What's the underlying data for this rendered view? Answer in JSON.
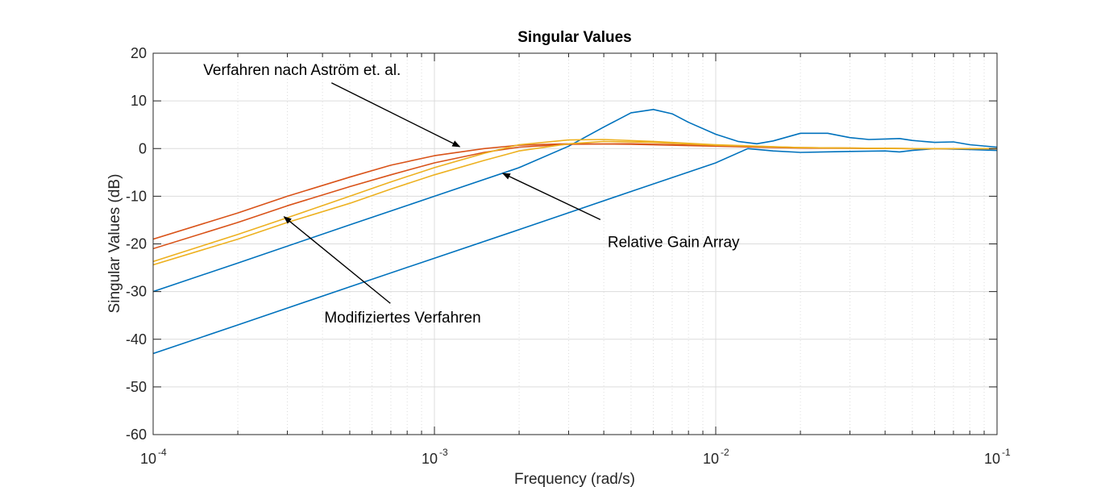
{
  "chart_data": {
    "type": "line",
    "title": "Singular Values",
    "xlabel": "Frequency (rad/s)",
    "ylabel": "Singular Values (dB)",
    "xscale": "log",
    "xlim": [
      0.0001,
      0.1
    ],
    "ylim": [
      -60,
      20
    ],
    "grid": true,
    "x_ticks": [
      {
        "base": "10",
        "exp": "-4",
        "value": 0.0001
      },
      {
        "base": "10",
        "exp": "-3",
        "value": 0.001
      },
      {
        "base": "10",
        "exp": "-2",
        "value": 0.01
      },
      {
        "base": "10",
        "exp": "-1",
        "value": 0.1
      }
    ],
    "y_ticks": [
      "20",
      "10",
      "0",
      "-10",
      "-20",
      "-30",
      "-40",
      "-50",
      "-60"
    ],
    "colors": {
      "blue": "#0072BD",
      "red": "#D95319",
      "yellow": "#EDB120",
      "grid": "#dcdcdc",
      "axis": "#262626"
    },
    "series": [
      {
        "color": "#0072BD",
        "points": [
          [
            0.0001,
            -30
          ],
          [
            0.0002,
            -24
          ],
          [
            0.0005,
            -16
          ],
          [
            0.001,
            -10
          ],
          [
            0.002,
            -4
          ],
          [
            0.003,
            0.5
          ],
          [
            0.004,
            4.5
          ],
          [
            0.005,
            7.5
          ],
          [
            0.006,
            8.2
          ],
          [
            0.007,
            7.3
          ],
          [
            0.008,
            5.5
          ],
          [
            0.01,
            3
          ],
          [
            0.012,
            1.5
          ],
          [
            0.014,
            1
          ],
          [
            0.016,
            1.6
          ],
          [
            0.02,
            3.2
          ],
          [
            0.025,
            3.2
          ],
          [
            0.03,
            2.3
          ],
          [
            0.035,
            1.9
          ],
          [
            0.04,
            2
          ],
          [
            0.045,
            2.1
          ],
          [
            0.05,
            1.7
          ],
          [
            0.06,
            1.3
          ],
          [
            0.07,
            1.4
          ],
          [
            0.08,
            0.8
          ],
          [
            0.1,
            0.3
          ]
        ]
      },
      {
        "color": "#0072BD",
        "points": [
          [
            0.0001,
            -43
          ],
          [
            0.0002,
            -37
          ],
          [
            0.0005,
            -29
          ],
          [
            0.001,
            -23
          ],
          [
            0.002,
            -17
          ],
          [
            0.005,
            -9
          ],
          [
            0.01,
            -3
          ],
          [
            0.013,
            0
          ],
          [
            0.016,
            -0.5
          ],
          [
            0.02,
            -0.8
          ],
          [
            0.03,
            -0.6
          ],
          [
            0.04,
            -0.5
          ],
          [
            0.045,
            -0.7
          ],
          [
            0.05,
            -0.4
          ],
          [
            0.06,
            0
          ],
          [
            0.08,
            -0.2
          ],
          [
            0.1,
            -0.4
          ]
        ]
      },
      {
        "color": "#D95319",
        "points": [
          [
            0.0001,
            -19
          ],
          [
            0.0002,
            -13.5
          ],
          [
            0.0003,
            -10
          ],
          [
            0.0005,
            -6
          ],
          [
            0.0007,
            -3.5
          ],
          [
            0.001,
            -1.5
          ],
          [
            0.0015,
            0
          ],
          [
            0.002,
            0.7
          ],
          [
            0.003,
            1
          ],
          [
            0.005,
            0.9
          ],
          [
            0.01,
            0.5
          ],
          [
            0.02,
            0.1
          ],
          [
            0.05,
            0
          ],
          [
            0.1,
            0
          ]
        ]
      },
      {
        "color": "#D95319",
        "points": [
          [
            0.0001,
            -21
          ],
          [
            0.0002,
            -15.5
          ],
          [
            0.0003,
            -12
          ],
          [
            0.0005,
            -8
          ],
          [
            0.0007,
            -5.5
          ],
          [
            0.001,
            -3
          ],
          [
            0.0015,
            -0.8
          ],
          [
            0.002,
            0.3
          ],
          [
            0.003,
            0.9
          ],
          [
            0.005,
            1
          ],
          [
            0.01,
            0.6
          ],
          [
            0.02,
            0.2
          ],
          [
            0.05,
            0
          ],
          [
            0.1,
            0
          ]
        ]
      },
      {
        "color": "#EDB120",
        "points": [
          [
            0.0001,
            -23.7
          ],
          [
            0.0002,
            -18
          ],
          [
            0.0003,
            -14.5
          ],
          [
            0.0005,
            -10
          ],
          [
            0.0007,
            -7
          ],
          [
            0.001,
            -4
          ],
          [
            0.0015,
            -1
          ],
          [
            0.002,
            0.8
          ],
          [
            0.003,
            1.8
          ],
          [
            0.004,
            1.9
          ],
          [
            0.006,
            1.5
          ],
          [
            0.01,
            0.8
          ],
          [
            0.02,
            0.2
          ],
          [
            0.05,
            0
          ],
          [
            0.1,
            0
          ]
        ]
      },
      {
        "color": "#EDB120",
        "points": [
          [
            0.0001,
            -24.4
          ],
          [
            0.0002,
            -19
          ],
          [
            0.0003,
            -15.5
          ],
          [
            0.0005,
            -11.5
          ],
          [
            0.0007,
            -8.5
          ],
          [
            0.001,
            -5.5
          ],
          [
            0.0015,
            -2.5
          ],
          [
            0.002,
            -0.5
          ],
          [
            0.003,
            1
          ],
          [
            0.004,
            1.5
          ],
          [
            0.006,
            1.3
          ],
          [
            0.01,
            0.7
          ],
          [
            0.02,
            0.2
          ],
          [
            0.05,
            0
          ],
          [
            0.1,
            0
          ]
        ]
      }
    ],
    "annotations": [
      {
        "text": "Verfahren nach Aström et. al.",
        "from": [
          0.00032,
          6
        ],
        "to": [
          0.00123,
          0.4
        ]
      },
      {
        "text": "Relative Gain Array",
        "from": [
          0.0049,
          -19.3
        ],
        "to": [
          0.00175,
          -5.2
        ]
      },
      {
        "text": "Modifiziertes Verfahren",
        "from": [
          0.000735,
          -34.5
        ],
        "to": [
          0.000292,
          -14.3
        ]
      }
    ]
  }
}
